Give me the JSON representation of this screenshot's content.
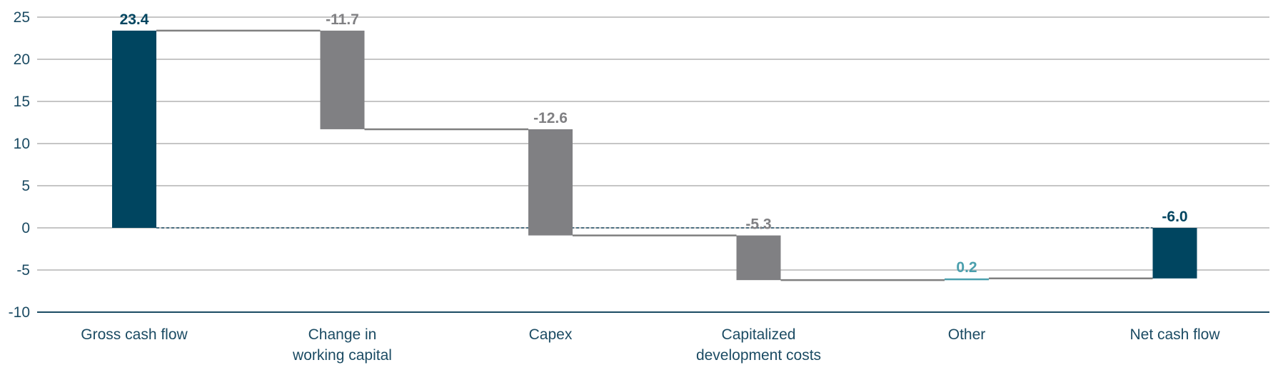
{
  "chart_data": {
    "type": "bar",
    "subtype": "waterfall",
    "title": "",
    "xlabel": "",
    "ylabel": "",
    "ylim": [
      -10,
      25
    ],
    "yticks": [
      25,
      20,
      15,
      10,
      5,
      0,
      -5,
      -10
    ],
    "grid": true,
    "categories": [
      [
        "Gross cash flow"
      ],
      [
        "Change in",
        "working capital"
      ],
      [
        "Capex"
      ],
      [
        "Capitalized",
        "development costs"
      ],
      [
        "Other"
      ],
      [
        "Net cash flow"
      ]
    ],
    "steps": [
      {
        "kind": "total",
        "value": 23.4,
        "label": "23.4"
      },
      {
        "kind": "delta",
        "value": -11.7,
        "label": "-11.7"
      },
      {
        "kind": "delta",
        "value": -12.6,
        "label": "-12.6"
      },
      {
        "kind": "delta",
        "value": -5.3,
        "label": "-5.3"
      },
      {
        "kind": "delta",
        "value": 0.2,
        "label": "0.2"
      },
      {
        "kind": "total",
        "value": -6.0,
        "label": "-6.0"
      }
    ],
    "colors": {
      "total": "#004560",
      "decrease": "#808083",
      "increase": "#4a9fad",
      "grid": "#b3b3b3",
      "axis": "#1b4b63",
      "connector": "#7f7f7f",
      "zero_line": "#1b4b63"
    }
  }
}
